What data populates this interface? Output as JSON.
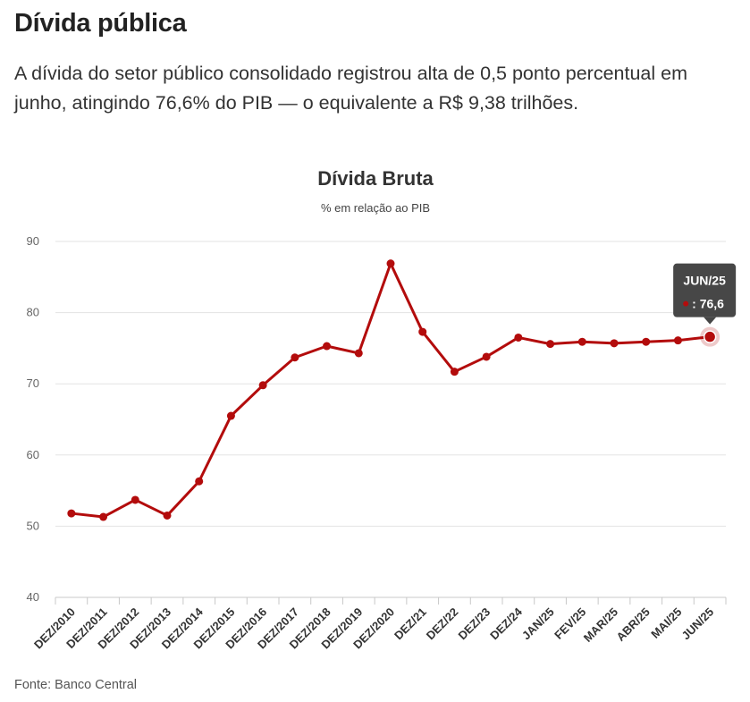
{
  "header": {
    "title": "Dívida pública",
    "subtitle": "A dívida do setor público consolidado registrou alta de 0,5 ponto percentual em junho, atingindo 76,6% do PIB — o equivalente a R$ 9,38 trilhões."
  },
  "source": "Fonte: Banco Central",
  "chart_data": {
    "type": "line",
    "title": "Dívida Bruta",
    "subtitle": "% em relação ao PIB",
    "xlabel": "",
    "ylabel": "",
    "ylim": [
      40,
      90
    ],
    "yticks": [
      40,
      50,
      60,
      70,
      80,
      90
    ],
    "grid": true,
    "categories": [
      "DEZ/2010",
      "DEZ/2011",
      "DEZ/2012",
      "DEZ/2013",
      "DEZ/2014",
      "DEZ/2015",
      "DEZ/2016",
      "DEZ/2017",
      "DEZ/2018",
      "DEZ/2019",
      "DEZ/2020",
      "DEZ/21",
      "DEZ/22",
      "DEZ/23",
      "DEZ/24",
      "JAN/25",
      "FEV/25",
      "MAR/25",
      "ABR/25",
      "MAI/25",
      "JUN/25"
    ],
    "series": [
      {
        "color": "#b30c0c",
        "values": [
          51.8,
          51.3,
          53.7,
          51.5,
          56.3,
          65.5,
          69.8,
          73.7,
          75.3,
          74.3,
          86.9,
          77.3,
          71.7,
          73.8,
          76.5,
          75.6,
          75.9,
          75.7,
          75.9,
          76.1,
          76.6
        ]
      }
    ],
    "tooltip": {
      "category": "JUN/25",
      "value_text": ": 76,6",
      "background": "#3d3d3d"
    }
  }
}
